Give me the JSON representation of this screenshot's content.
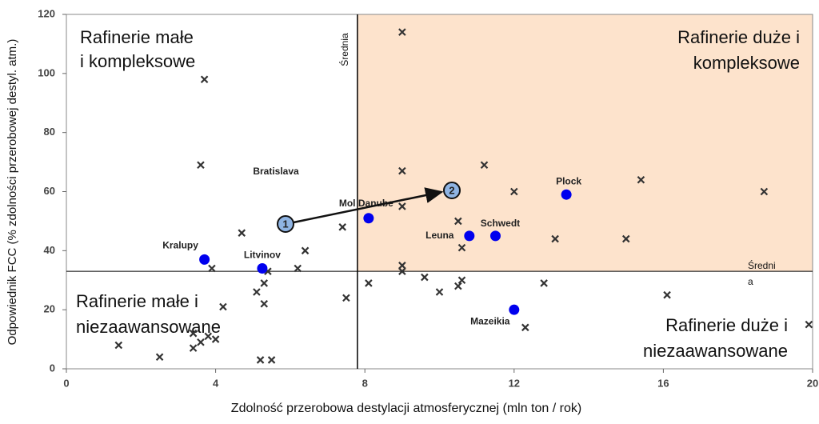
{
  "chart_data": {
    "type": "scatter",
    "xlabel": "Zdolność przerobowa destylacji atmosferycznej (mln ton / rok)",
    "ylabel": "Odpowiednik FCC (% zdolności przerobowej destyl. atm.)",
    "xlim": [
      0,
      20
    ],
    "xticks": [
      0,
      4,
      8,
      12,
      16,
      20
    ],
    "ylim": [
      0,
      120
    ],
    "yticks": [
      0,
      20,
      40,
      60,
      80,
      100,
      120
    ],
    "mean_x": {
      "value": 7.8,
      "label": "Średnia"
    },
    "mean_y": {
      "value": 33,
      "label": [
        "Średni",
        "a"
      ]
    },
    "highlight_color": "#fde3cc",
    "quadrants": {
      "top_left": [
        "Rafinerie małe",
        "i kompleksowe"
      ],
      "top_right": [
        "Rafinerie duże i",
        "kompleksowe"
      ],
      "bottom_left": [
        "Rafinerie małe i",
        "niezaawansowane"
      ],
      "bottom_right": [
        "Rafinerie duże i",
        "niezaawansowane"
      ]
    },
    "annotations": [
      "Bratislava",
      "1",
      "2"
    ],
    "series": [
      {
        "marker": "x",
        "color": "#333333",
        "x": [
          3.7,
          9.0,
          3.6,
          9.0,
          11.2,
          12.0,
          15.4,
          18.7,
          9.0,
          10.5,
          10.6,
          13.1,
          15.0,
          4.7,
          7.4,
          6.4,
          6.2,
          3.9,
          5.4,
          5.3,
          5.1,
          5.3,
          4.2,
          7.5,
          8.1,
          9.0,
          9.0,
          9.6,
          10.6,
          10.5,
          10.0,
          12.8,
          16.1,
          19.9,
          12.3,
          1.4,
          2.5,
          3.4,
          3.6,
          3.4,
          3.8,
          4.0,
          5.2,
          5.5
        ],
        "values": [
          98,
          114,
          69,
          67,
          69,
          60,
          64,
          60,
          55,
          50,
          41,
          44,
          44,
          46,
          48,
          40,
          34,
          34,
          33,
          29,
          26,
          22,
          21,
          24,
          29,
          33,
          35,
          31,
          30,
          28,
          26,
          29,
          25,
          15,
          14,
          8,
          4,
          12,
          9,
          7,
          11,
          10,
          3,
          3
        ]
      },
      {
        "marker": "dot",
        "color": "#0000ee",
        "x": [
          3.7,
          5.25,
          8.1,
          10.8,
          11.5,
          13.4,
          12.0
        ],
        "values": [
          37,
          34,
          51,
          45,
          45,
          59,
          20
        ],
        "labels": [
          "Kralupy",
          "Litvinov",
          "Mol Danube",
          "Leuna",
          "Schwedt",
          "Plock",
          "Mazeikia"
        ]
      }
    ]
  }
}
